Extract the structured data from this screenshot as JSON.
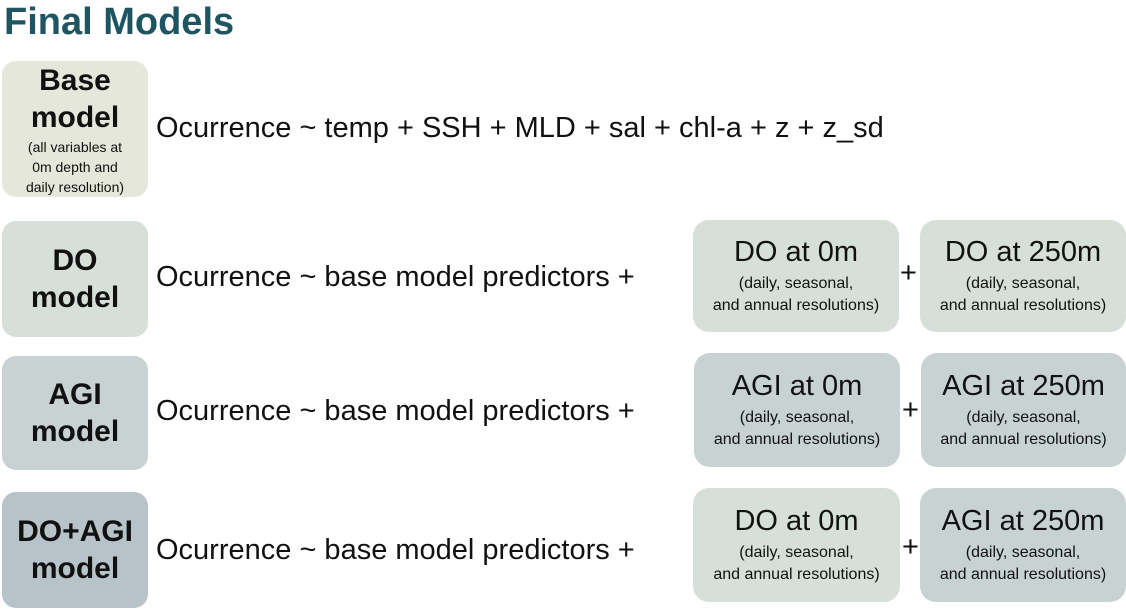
{
  "title": "Final Models",
  "colors": {
    "title": "#1e5560",
    "base": "#e4e7d9",
    "do": "#d6dfd8",
    "agi": "#c8d2d3",
    "doagi": "#b6c4c9"
  },
  "rows": [
    {
      "label_line1": "Base",
      "label_line2": "model",
      "label_sub": [
        "(all variables at",
        "0m depth and",
        "daily resolution)"
      ],
      "equation": "Ocurrence ~ temp + SSH + MLD + sal + chl-a + z + z_sd"
    },
    {
      "label_line1": "DO",
      "label_line2": "model",
      "equation": "Ocurrence ~ base model predictors +",
      "plus": "+",
      "predictors": [
        {
          "name": "DO at 0m",
          "note": [
            "(daily, seasonal,",
            "and annual resolutions)"
          ]
        },
        {
          "name": "DO at 250m",
          "note": [
            "(daily, seasonal,",
            "and annual resolutions)"
          ]
        }
      ]
    },
    {
      "label_line1": "AGI",
      "label_line2": "model",
      "equation": "Ocurrence ~ base model predictors +",
      "plus": "+",
      "predictors": [
        {
          "name": "AGI at 0m",
          "note": [
            "(daily, seasonal,",
            "and annual resolutions)"
          ]
        },
        {
          "name": "AGI at 250m",
          "note": [
            "(daily, seasonal,",
            "and annual resolutions)"
          ]
        }
      ]
    },
    {
      "label_line1": "DO+AGI",
      "label_line2": "model",
      "equation": "Ocurrence ~ base model predictors +",
      "plus": "+",
      "predictors": [
        {
          "name": "DO at 0m",
          "note": [
            "(daily, seasonal,",
            "and annual resolutions)"
          ]
        },
        {
          "name": "AGI at 250m",
          "note": [
            "(daily, seasonal,",
            "and annual resolutions)"
          ]
        }
      ]
    }
  ]
}
